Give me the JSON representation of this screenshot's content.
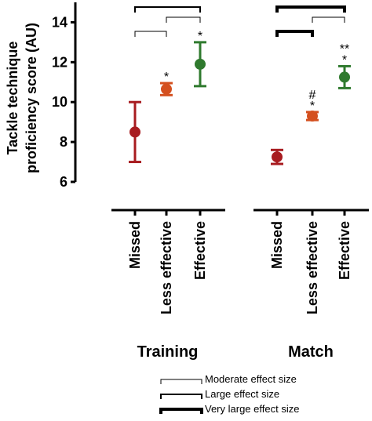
{
  "chart_data": {
    "type": "scatter",
    "ylabel_lines": [
      "Tackle technique",
      "proficiency score (AU)"
    ],
    "ylim": [
      6,
      15
    ],
    "yticks": [
      6,
      8,
      10,
      12,
      14
    ],
    "grid": false,
    "colors": {
      "missed": "#a81c20",
      "less_effective": "#d4501f",
      "effective": "#2f7a2e"
    },
    "groups": [
      {
        "name": "Training",
        "points": [
          {
            "category": "Missed",
            "mean": 8.5,
            "lower": 7.0,
            "upper": 10.0,
            "color_key": "missed",
            "marker": ""
          },
          {
            "category": "Less effective",
            "mean": 10.65,
            "lower": 10.35,
            "upper": 10.95,
            "color_key": "less_effective",
            "marker": "*"
          },
          {
            "category": "Effective",
            "mean": 11.9,
            "lower": 10.8,
            "upper": 13.0,
            "color_key": "effective",
            "marker": "*"
          }
        ],
        "brackets": [
          {
            "from": 0,
            "to": 2,
            "level": 1,
            "effect": "large"
          },
          {
            "from": 1,
            "to": 2,
            "level": 2,
            "effect": "moderate"
          },
          {
            "from": 0,
            "to": 1,
            "level": 3,
            "effect": "moderate"
          }
        ]
      },
      {
        "name": "Match",
        "points": [
          {
            "category": "Missed",
            "mean": 7.25,
            "lower": 6.9,
            "upper": 7.6,
            "color_key": "missed",
            "marker": ""
          },
          {
            "category": "Less effective",
            "mean": 9.3,
            "lower": 9.1,
            "upper": 9.5,
            "color_key": "less_effective",
            "marker": "*",
            "marker2": "#"
          },
          {
            "category": "Effective",
            "mean": 11.25,
            "lower": 10.7,
            "upper": 11.8,
            "color_key": "effective",
            "marker": "*",
            "marker2": "**"
          }
        ],
        "brackets": [
          {
            "from": 0,
            "to": 2,
            "level": 1,
            "effect": "very_large"
          },
          {
            "from": 1,
            "to": 2,
            "level": 2,
            "effect": "moderate"
          },
          {
            "from": 0,
            "to": 1,
            "level": 3,
            "effect": "very_large"
          }
        ]
      }
    ],
    "legend": [
      {
        "label": "Moderate effect size",
        "effect": "moderate"
      },
      {
        "label": "Large effect size",
        "effect": "large"
      },
      {
        "label": "Very large effect size",
        "effect": "very_large"
      }
    ]
  }
}
